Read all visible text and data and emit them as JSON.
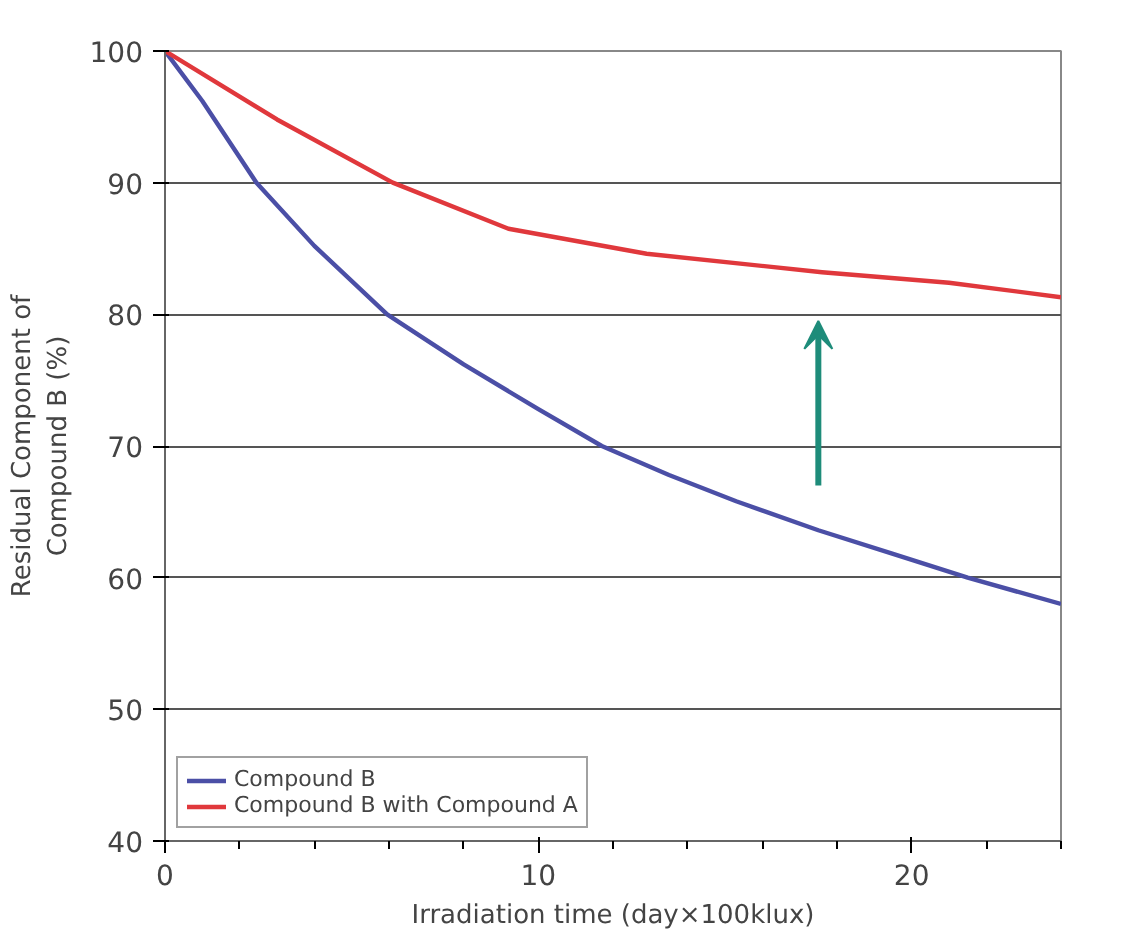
{
  "chart_data": {
    "type": "line",
    "xlabel": "Irradiation time (day×100klux)",
    "ylabel": "Residual Component of\nCompound B (%)",
    "xlim": [
      0,
      24
    ],
    "xticks": [
      0,
      10,
      20
    ],
    "ylim": [
      40,
      100
    ],
    "yticks": [
      40,
      50,
      60,
      70,
      80,
      90,
      100
    ],
    "grid": "y",
    "legend": "bottom",
    "marker": "none",
    "line_style": "solid",
    "series": [
      {
        "name": "Compound B",
        "color": "#4b4fa6",
        "x": [
          0,
          1,
          2.45,
          4,
          5.95,
          8,
          10,
          11.7,
          13.5,
          15.3,
          17.5,
          19.5,
          21.5,
          24
        ],
        "values": [
          100,
          96.2,
          90,
          85.2,
          80,
          76.2,
          72.8,
          70,
          67.8,
          65.8,
          63.6,
          61.8,
          60,
          58
        ]
      },
      {
        "name": "Compound B with Compound A",
        "color": "#e0383c",
        "x": [
          0,
          3,
          6.1,
          9.2,
          12.9,
          17.6,
          21,
          24
        ],
        "values": [
          100,
          94.8,
          90,
          86.5,
          84.6,
          83.2,
          82.4,
          81.3
        ]
      }
    ]
  }
}
